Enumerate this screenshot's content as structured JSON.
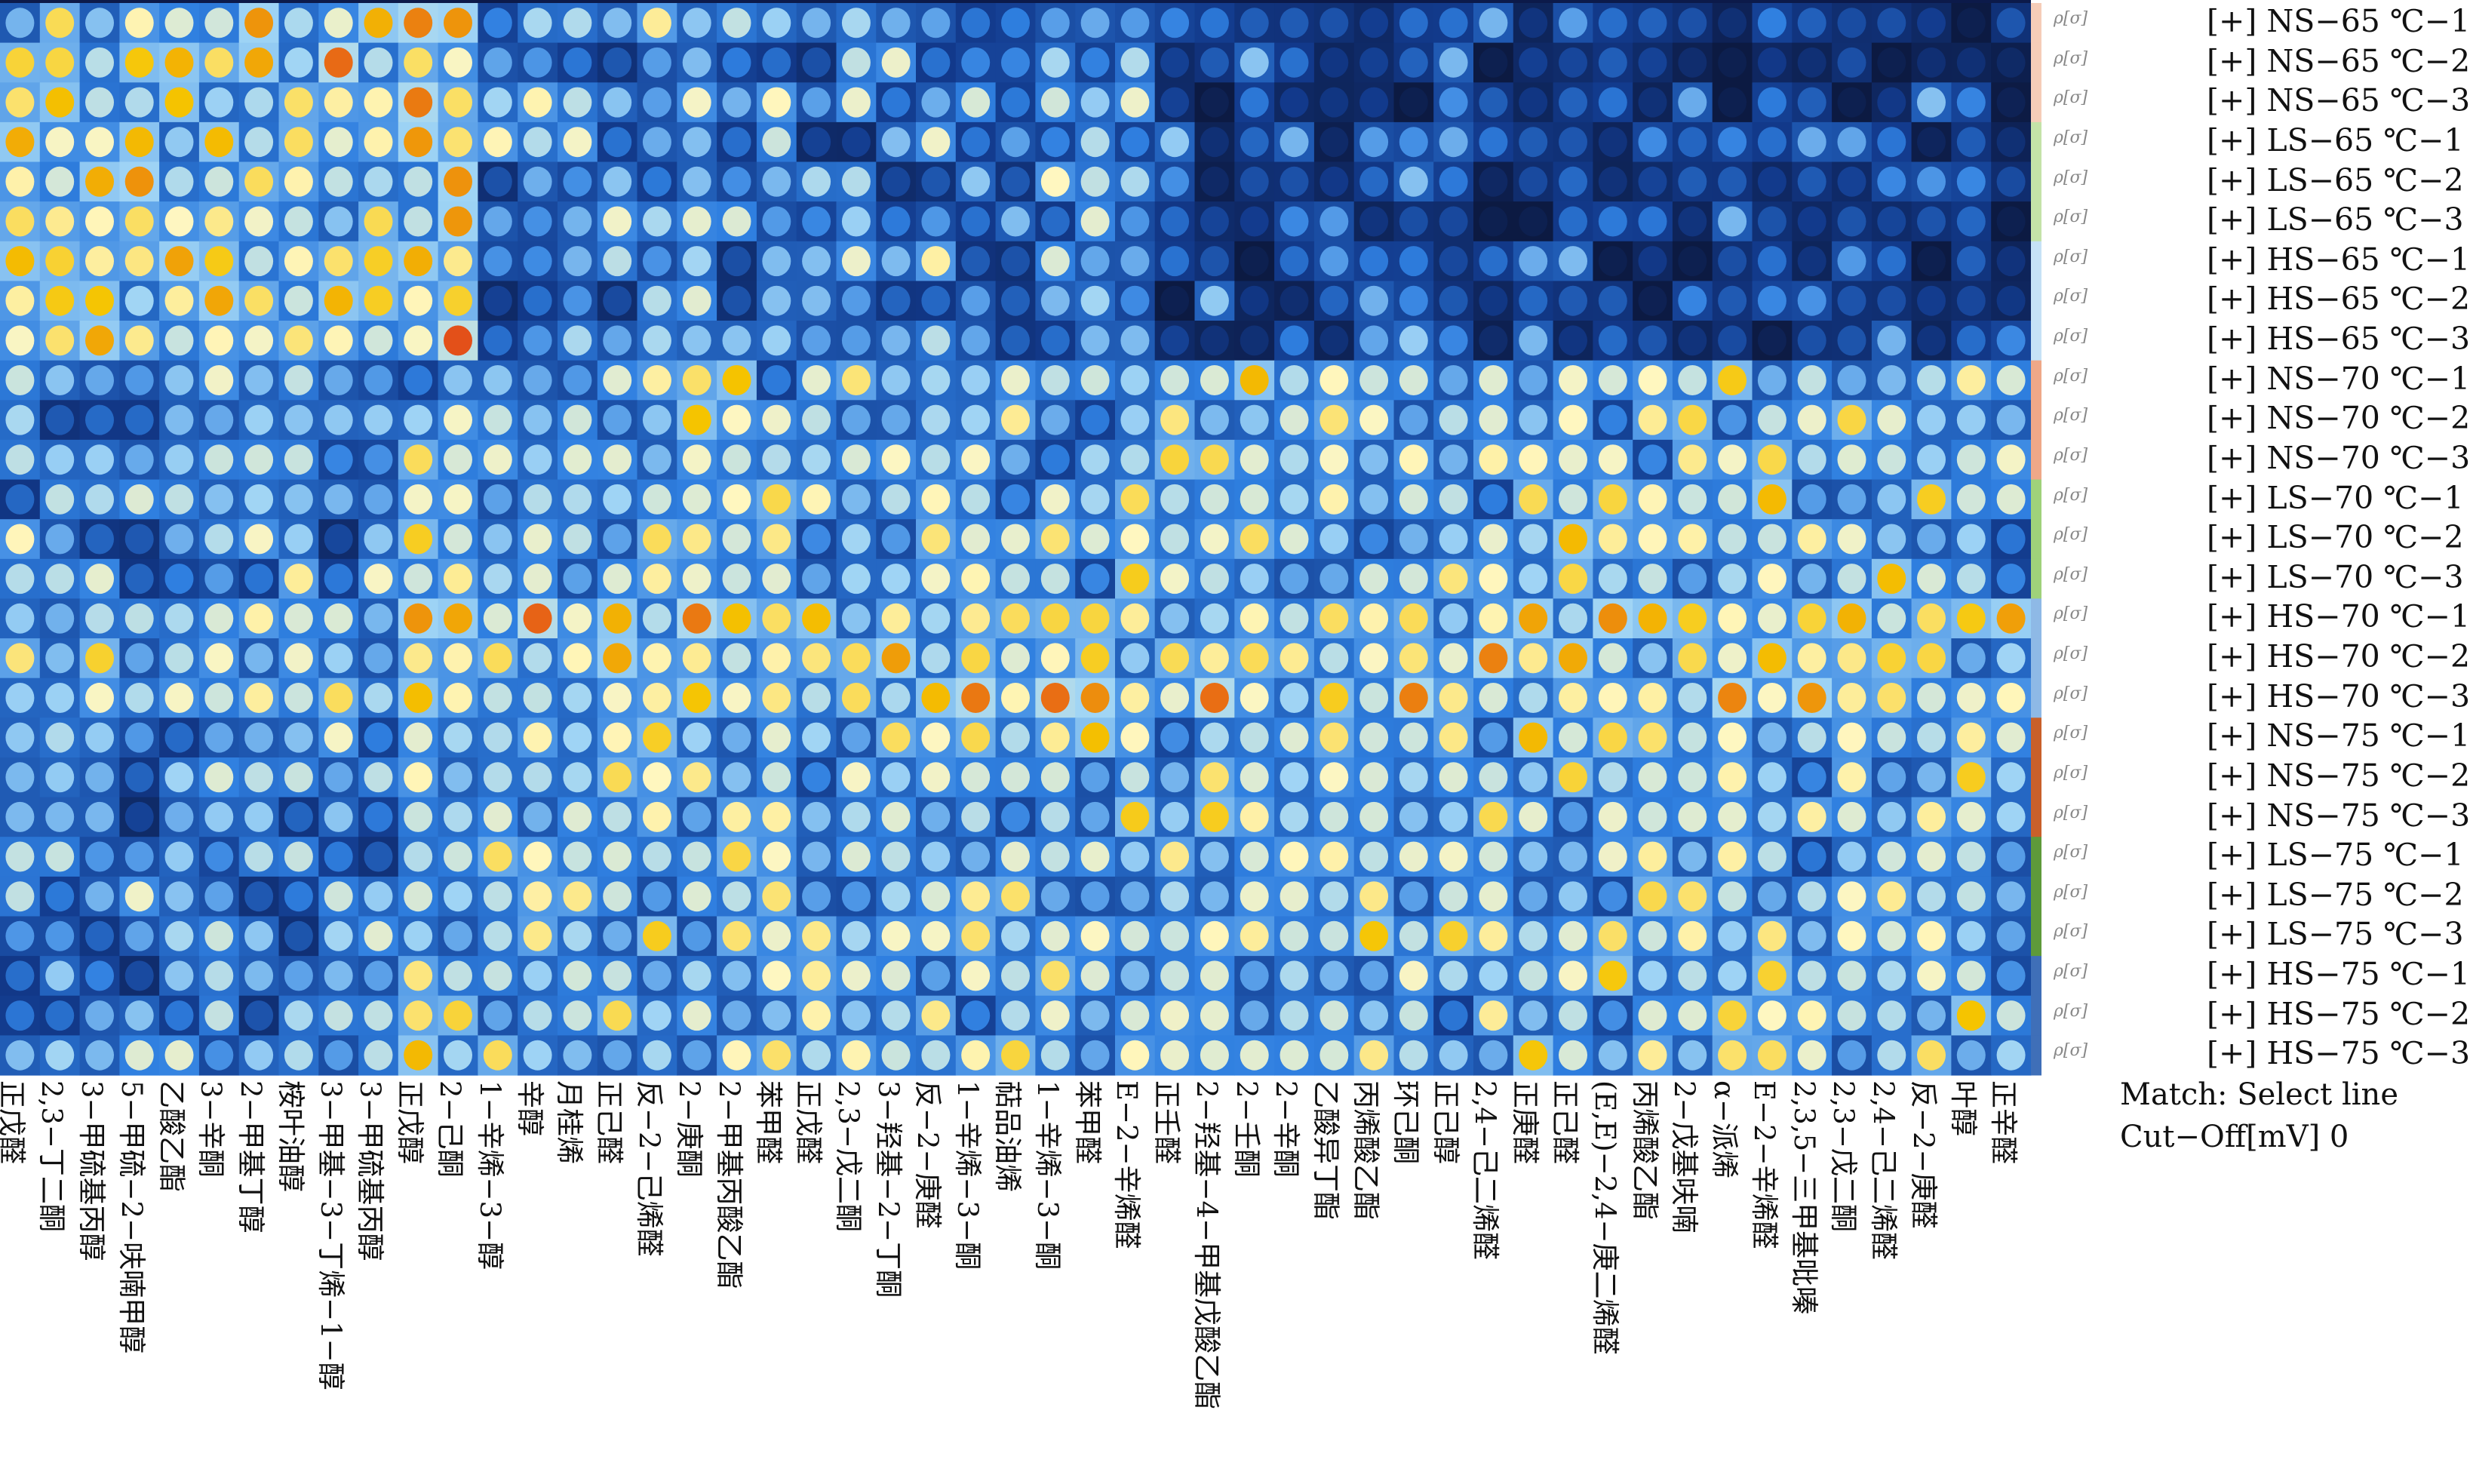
{
  "chart_data": {
    "type": "heatmap",
    "title": "",
    "xlabel": "",
    "ylabel": "",
    "color_scale": [
      "#0b1230",
      "#123a8c",
      "#2f7fe0",
      "#9fd4f5",
      "#fff7c0",
      "#f5c400",
      "#e5541a",
      "#c01010"
    ],
    "rows": [
      "[+] NS−65 ℃−1",
      "[+] NS−65 ℃−2",
      "[+] NS−65 ℃−3",
      "[+] LS−65 ℃−1",
      "[+] LS−65 ℃−2",
      "[+] LS−65 ℃−3",
      "[+] HS−65 ℃−1",
      "[+] HS−65 ℃−2",
      "[+] HS−65 ℃−3",
      "[+] NS−70 ℃−1",
      "[+] NS−70 ℃−2",
      "[+] NS−70 ℃−3",
      "[+] LS−70 ℃−1",
      "[+] LS−70 ℃−2",
      "[+] LS−70 ℃−3",
      "[+] HS−70 ℃−1",
      "[+] HS−70 ℃−2",
      "[+] HS−70 ℃−3",
      "[+] NS−75 ℃−1",
      "[+] NS−75 ℃−2",
      "[+] NS−75 ℃−3",
      "[+] LS−75 ℃−1",
      "[+] LS−75 ℃−2",
      "[+] LS−75 ℃−3",
      "[+] HS−75 ℃−1",
      "[+] HS−75 ℃−2",
      "[+] HS−75 ℃−3"
    ],
    "row_group_colors": [
      "#f6cdb8",
      "#f6cdb8",
      "#f6cdb8",
      "#c4e3a8",
      "#c4e3a8",
      "#c4e3a8",
      "#c6e2f6",
      "#c6e2f6",
      "#c6e2f6",
      "#efa888",
      "#efa888",
      "#efa888",
      "#9fd27a",
      "#9fd27a",
      "#9fd27a",
      "#8eb9e6",
      "#8eb9e6",
      "#8eb9e6",
      "#c9602a",
      "#c9602a",
      "#c9602a",
      "#5e9a3a",
      "#5e9a3a",
      "#5e9a3a",
      "#3f6fb8",
      "#3f6fb8",
      "#3f6fb8"
    ],
    "row_glyph": "ρ[σ]",
    "columns": [
      "正戊醛",
      "2,3−丁二酮",
      "3−甲硫基丙醇",
      "5−甲硫−2−呋喃甲醇",
      "乙酸乙酯",
      "3−辛酮",
      "2−甲基丁醇",
      "桉叶油醇",
      "3−甲基−3−丁烯−1−醇",
      "3−甲硫基丙醇",
      "正戊醇",
      "2−己酮",
      "1−辛烯−3−醇",
      "辛醇",
      "月桂烯",
      "正己醛",
      "反−2−己烯醛",
      "2−庚酮",
      "2−甲基丙酸乙酯",
      "苯甲醛",
      "正戊醛",
      "2,3−戊二酮",
      "3−羟基−2−丁酮",
      "反−2−庚醛",
      "1−辛烯−3−酮",
      "萜品油烯",
      "1−辛烯−3−酮",
      "苯甲醛",
      "E−2−辛烯醛",
      "正壬醛",
      "2−羟基−4−甲基戊酸乙酯",
      "2−壬酮",
      "2−辛酮",
      "乙酸异丁酯",
      "丙烯酸乙酯",
      "环己酮",
      "正己醇",
      "2,4−己二烯醛",
      "正庚醛",
      "正己醛",
      "(E,E)−2,4−庚二烯醛",
      "丙烯酸乙酯",
      "2−戊基呋喃",
      "α−派烯",
      "E−2−辛烯醛",
      "2,3,5−三甲基吡嗪",
      "2,3−戊二酮",
      "2,4−己二烯醛",
      "反−2−庚醛",
      "叶醇",
      "正辛醛"
    ],
    "legend": "none",
    "grid": false
  },
  "info": {
    "match": "Match: Select line",
    "cutoff": "Cut−Off[mV] 0"
  }
}
